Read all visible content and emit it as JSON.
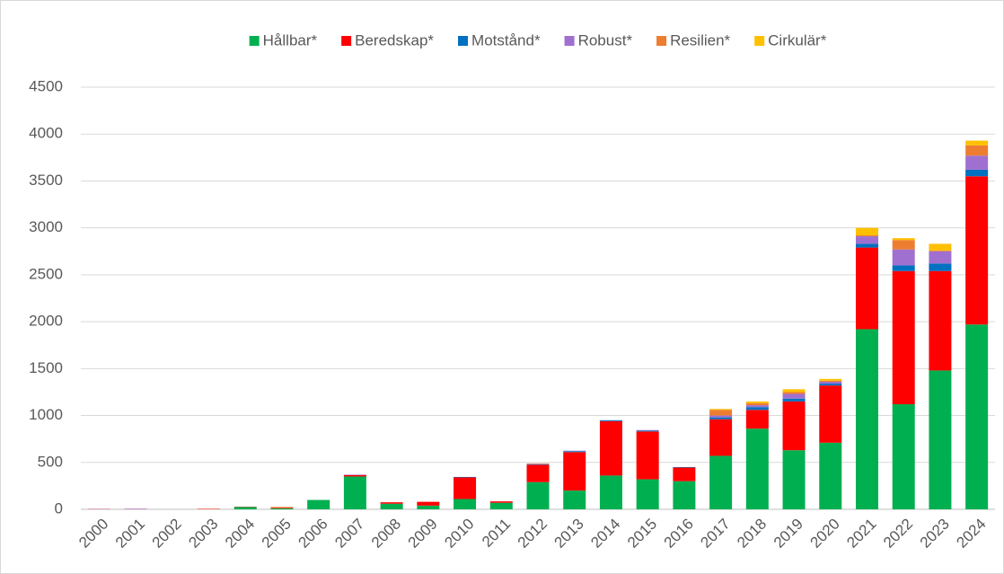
{
  "chart_data": {
    "type": "stacked_bar",
    "categories": [
      "2000",
      "2001",
      "2002",
      "2003",
      "2004",
      "2005",
      "2006",
      "2007",
      "2008",
      "2009",
      "2010",
      "2011",
      "2012",
      "2013",
      "2014",
      "2015",
      "2016",
      "2017",
      "2018",
      "2019",
      "2020",
      "2021",
      "2022",
      "2023",
      "2024"
    ],
    "series": [
      {
        "name": "Hållbar*",
        "color": "#00b050",
        "values": [
          0,
          0,
          0,
          0,
          25,
          10,
          100,
          350,
          60,
          40,
          110,
          70,
          290,
          200,
          360,
          320,
          300,
          570,
          860,
          630,
          710,
          1920,
          1120,
          1480,
          1970
        ]
      },
      {
        "name": "Beredskap*",
        "color": "#ff0000",
        "values": [
          3,
          2,
          0,
          4,
          3,
          5,
          0,
          15,
          15,
          40,
          230,
          15,
          185,
          410,
          580,
          510,
          145,
          390,
          200,
          520,
          610,
          870,
          1420,
          1060,
          1580
        ]
      },
      {
        "name": "Motstånd*",
        "color": "#0070c0",
        "values": [
          0,
          0,
          0,
          0,
          0,
          0,
          0,
          0,
          0,
          0,
          5,
          0,
          5,
          10,
          10,
          10,
          5,
          20,
          30,
          30,
          20,
          40,
          60,
          80,
          70
        ]
      },
      {
        "name": "Robust*",
        "color": "#a070d0",
        "values": [
          2,
          5,
          0,
          0,
          0,
          0,
          0,
          5,
          0,
          0,
          0,
          0,
          5,
          5,
          0,
          5,
          0,
          20,
          20,
          50,
          20,
          80,
          170,
          130,
          150
        ]
      },
      {
        "name": "Resilien*",
        "color": "#ed7d31",
        "values": [
          0,
          0,
          0,
          2,
          0,
          10,
          0,
          0,
          0,
          0,
          0,
          0,
          5,
          0,
          0,
          0,
          0,
          60,
          20,
          20,
          10,
          10,
          100,
          10,
          110
        ]
      },
      {
        "name": "Cirkulär*",
        "color": "#ffc000",
        "values": [
          0,
          0,
          0,
          0,
          0,
          0,
          0,
          0,
          0,
          0,
          0,
          0,
          0,
          0,
          0,
          0,
          0,
          10,
          20,
          30,
          20,
          80,
          20,
          70,
          50
        ]
      }
    ],
    "ylim": [
      0,
      4500
    ],
    "yticks": [
      0,
      500,
      1000,
      1500,
      2000,
      2500,
      3000,
      3500,
      4000,
      4500
    ],
    "grid": true,
    "legend": "top"
  }
}
